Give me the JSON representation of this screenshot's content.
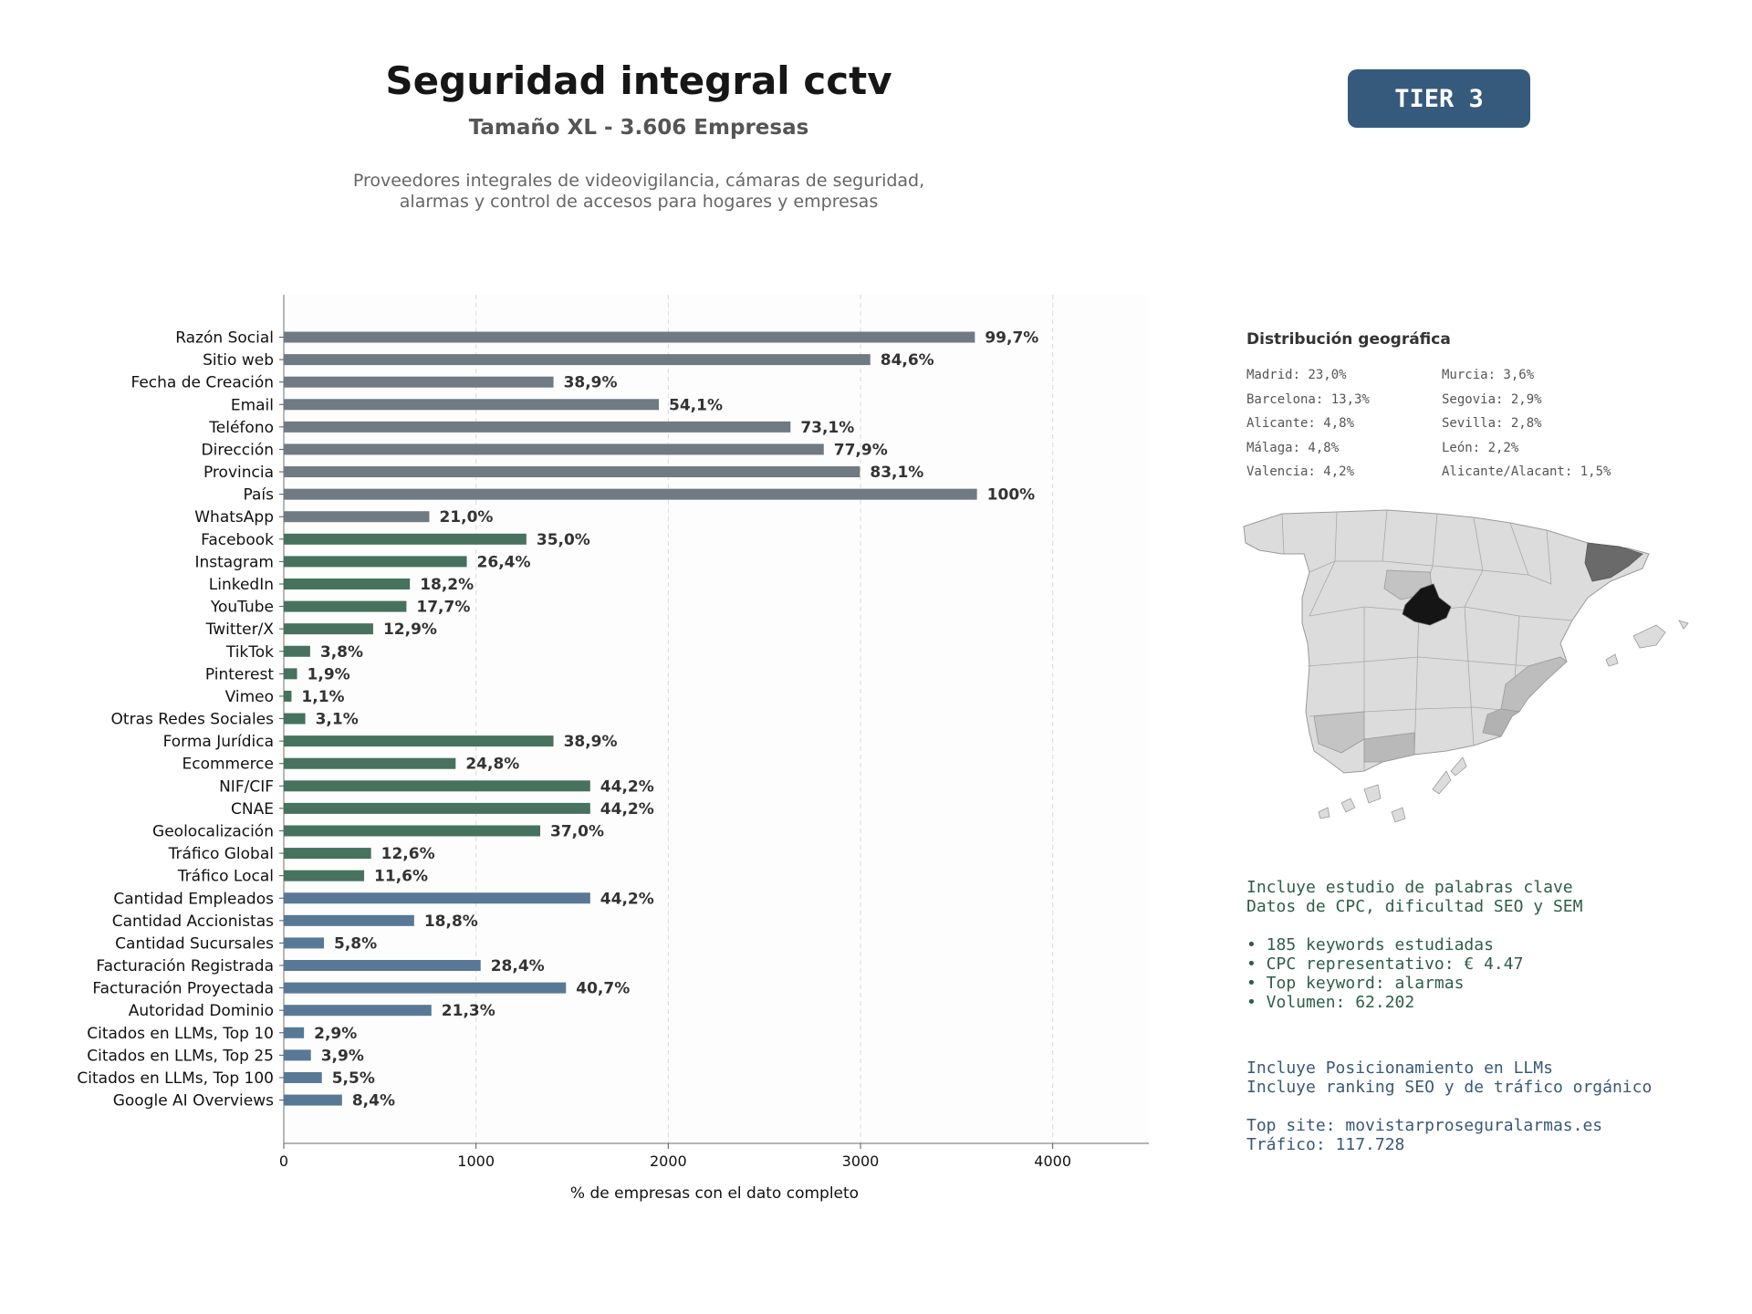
{
  "header": {
    "title": "Seguridad integral cctv",
    "subtitle": "Tamaño XL - 3.606 Empresas",
    "description_line1": "Proveedores integrales de videovigilancia, cámaras de seguridad,",
    "description_line2": "alarmas y control de accesos para hogares y empresas",
    "tier_label": "TIER 3"
  },
  "colors": {
    "gray_bar": "#6f7a83",
    "green_bar": "#46725e",
    "blue_bar": "#587896",
    "tier_badge": "#355a7c"
  },
  "chart_data": {
    "type": "bar",
    "orientation": "horizontal",
    "xlabel": "% de empresas con el dato completo",
    "xlim": [
      0,
      4500
    ],
    "xticks": [
      0,
      1000,
      2000,
      3000,
      4000
    ],
    "grid": "vertical dashed",
    "categories": [
      "Razón Social",
      "Sitio web",
      "Fecha de Creación",
      "Email",
      "Teléfono",
      "Dirección",
      "Provincia",
      "País",
      "WhatsApp",
      "Facebook",
      "Instagram",
      "LinkedIn",
      "YouTube",
      "Twitter/X",
      "TikTok",
      "Pinterest",
      "Vimeo",
      "Otras Redes Sociales",
      "Forma Jurídica",
      "Ecommerce",
      "NIF/CIF",
      "CNAE",
      "Geolocalización",
      "Tráfico Global",
      "Tráfico Local",
      "Cantidad Empleados",
      "Cantidad Accionistas",
      "Cantidad Sucursales",
      "Facturación Registrada",
      "Facturación Proyectada",
      "Autoridad Dominio",
      "Citados en LLMs, Top 10",
      "Citados en LLMs, Top 25",
      "Citados en LLMs, Top 100",
      "Google AI Overviews"
    ],
    "values": [
      3595,
      3051,
      1403,
      1951,
      2636,
      2809,
      2997,
      3606,
      757,
      1262,
      952,
      656,
      638,
      465,
      137,
      69,
      40,
      112,
      1403,
      894,
      1594,
      1594,
      1334,
      454,
      418,
      1594,
      678,
      209,
      1024,
      1468,
      768,
      105,
      141,
      198,
      303
    ],
    "labels": [
      "99,7%",
      "84,6%",
      "38,9%",
      "54,1%",
      "73,1%",
      "77,9%",
      "83,1%",
      "100%",
      "21,0%",
      "35,0%",
      "26,4%",
      "18,2%",
      "17,7%",
      "12,9%",
      "3,8%",
      "1,9%",
      "1,1%",
      "3,1%",
      "38,9%",
      "24,8%",
      "44,2%",
      "44,2%",
      "37,0%",
      "12,6%",
      "11,6%",
      "44,2%",
      "18,8%",
      "5,8%",
      "28,4%",
      "40,7%",
      "21,3%",
      "2,9%",
      "3,9%",
      "5,5%",
      "8,4%"
    ],
    "groups": [
      "gray",
      "gray",
      "gray",
      "gray",
      "gray",
      "gray",
      "gray",
      "gray",
      "gray",
      "green",
      "green",
      "green",
      "green",
      "green",
      "green",
      "green",
      "green",
      "green",
      "green",
      "green",
      "green",
      "green",
      "green",
      "green",
      "green",
      "blue",
      "blue",
      "blue",
      "blue",
      "blue",
      "blue",
      "blue",
      "blue",
      "blue",
      "blue"
    ]
  },
  "geo": {
    "title": "Distribución geográfica",
    "col1": [
      "Madrid: 23,0%",
      "Barcelona: 13,3%",
      "Alicante: 4,8%",
      "Málaga: 4,8%",
      "Valencia: 4,2%"
    ],
    "col2": [
      "Murcia: 3,6%",
      "Segovia: 2,9%",
      "Sevilla: 2,8%",
      "León: 2,2%",
      "Alicante/Alacant: 1,5%"
    ]
  },
  "keywords": {
    "line1": "Incluye estudio de palabras clave",
    "line2": "Datos de CPC, dificultad SEO y SEM",
    "bullet1": "• 185 keywords estudiadas",
    "bullet2": "• CPC representativo: € 4.47",
    "bullet3": "• Top keyword: alarmas",
    "bullet4": "• Volumen: 62.202"
  },
  "llm": {
    "line1": "Incluye Posicionamiento en LLMs",
    "line2": "Incluye ranking SEO y de tráfico orgánico",
    "top_site": "Top site: movistarproseguralarmas.es",
    "traffic": "Tráfico: 117.728"
  }
}
